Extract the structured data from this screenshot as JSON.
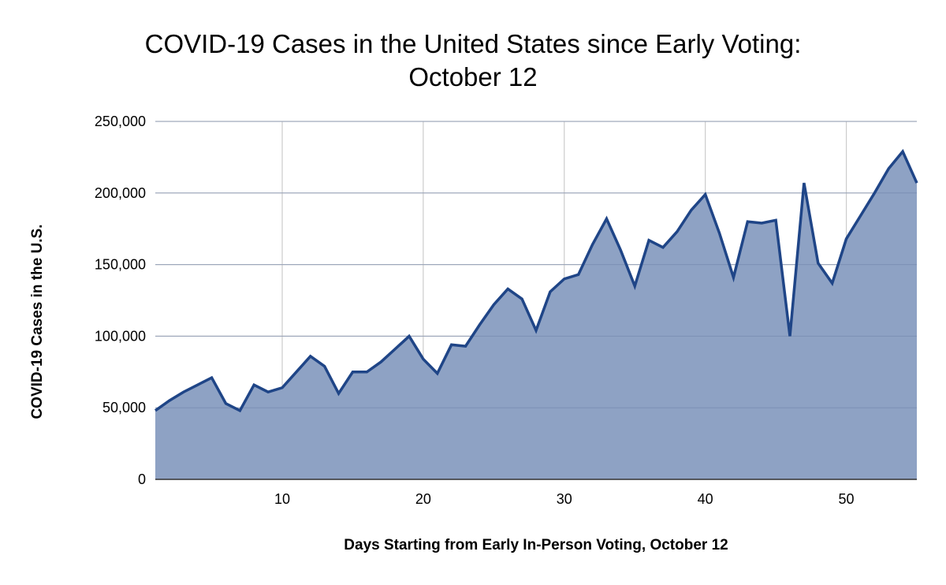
{
  "chart_data": {
    "type": "area",
    "title_lines": [
      "COVID-19 Cases in the United States since Early Voting:",
      "October 12"
    ],
    "xlabel": "Days Starting from Early In-Person Voting, October 12",
    "ylabel": "COVID-19 Cases in the U.S.",
    "xlim": [
      1,
      55
    ],
    "ylim": [
      0,
      250000
    ],
    "x_ticks": [
      10,
      20,
      30,
      40,
      50
    ],
    "y_ticks": [
      0,
      50000,
      100000,
      150000,
      200000,
      250000
    ],
    "y_tick_labels": [
      "0",
      "50,000",
      "100,000",
      "150,000",
      "200,000",
      "250,000"
    ],
    "grid": true,
    "colors": {
      "line": "#1f4587",
      "fill": "#8ea2c4",
      "grid": "#cccccc"
    },
    "x": [
      1,
      2,
      3,
      4,
      5,
      6,
      7,
      8,
      9,
      10,
      11,
      12,
      13,
      14,
      15,
      16,
      17,
      18,
      19,
      20,
      21,
      22,
      23,
      24,
      25,
      26,
      27,
      28,
      29,
      30,
      31,
      32,
      33,
      34,
      35,
      36,
      37,
      38,
      39,
      40,
      41,
      42,
      43,
      44,
      45,
      46,
      47,
      48,
      49,
      50,
      51,
      52,
      53,
      54,
      55
    ],
    "y": [
      48000,
      55000,
      61000,
      66000,
      71000,
      53000,
      48000,
      66000,
      61000,
      64000,
      75000,
      86000,
      79000,
      60000,
      75000,
      75000,
      82000,
      91000,
      100000,
      84000,
      74000,
      94000,
      93000,
      108000,
      122000,
      133000,
      126000,
      104000,
      131000,
      140000,
      143000,
      164000,
      182000,
      160000,
      135000,
      167000,
      162000,
      173000,
      188000,
      199000,
      172000,
      141000,
      180000,
      179000,
      181000,
      100000,
      207000,
      151000,
      137000,
      168000,
      184000,
      200000,
      217000,
      229000,
      207000
    ]
  }
}
